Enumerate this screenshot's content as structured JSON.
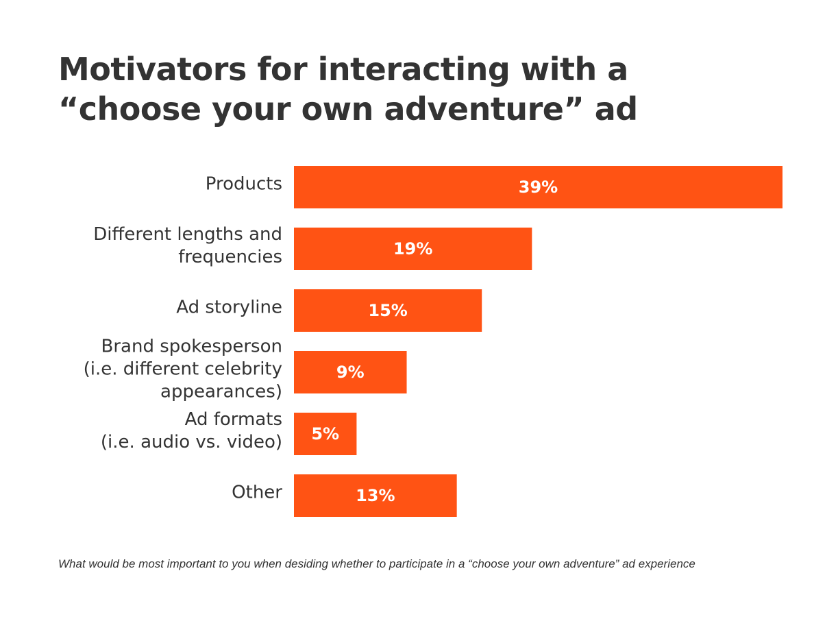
{
  "title_lines": [
    "Motivators for interacting with a",
    "“choose your own adventure” ad"
  ],
  "footnote": "What would be most important to you when desiding whether to participate in a “choose your own adventure” ad experience",
  "colors": {
    "bar": "#ff5314",
    "bar_label": "#ffffff",
    "text": "#333333"
  },
  "chart_data": {
    "type": "bar",
    "orientation": "horizontal",
    "title": "Motivators for interacting with a “choose your own adventure” ad",
    "xlabel": "",
    "ylabel": "",
    "categories": [
      [
        "Products"
      ],
      [
        "Different lengths and",
        "frequencies"
      ],
      [
        "Ad storyline"
      ],
      [
        "Brand spokesperson",
        "(i.e. different celebrity",
        "appearances)"
      ],
      [
        "Ad formats",
        "(i.e. audio vs. video)"
      ],
      [
        "Other"
      ]
    ],
    "values": [
      39,
      19,
      15,
      9,
      5,
      13
    ],
    "value_labels": [
      "39%",
      "19%",
      "15%",
      "9%",
      "5%",
      "13%"
    ],
    "unit": "%",
    "xlim": [
      0,
      39
    ],
    "grid": false,
    "legend": "none"
  }
}
